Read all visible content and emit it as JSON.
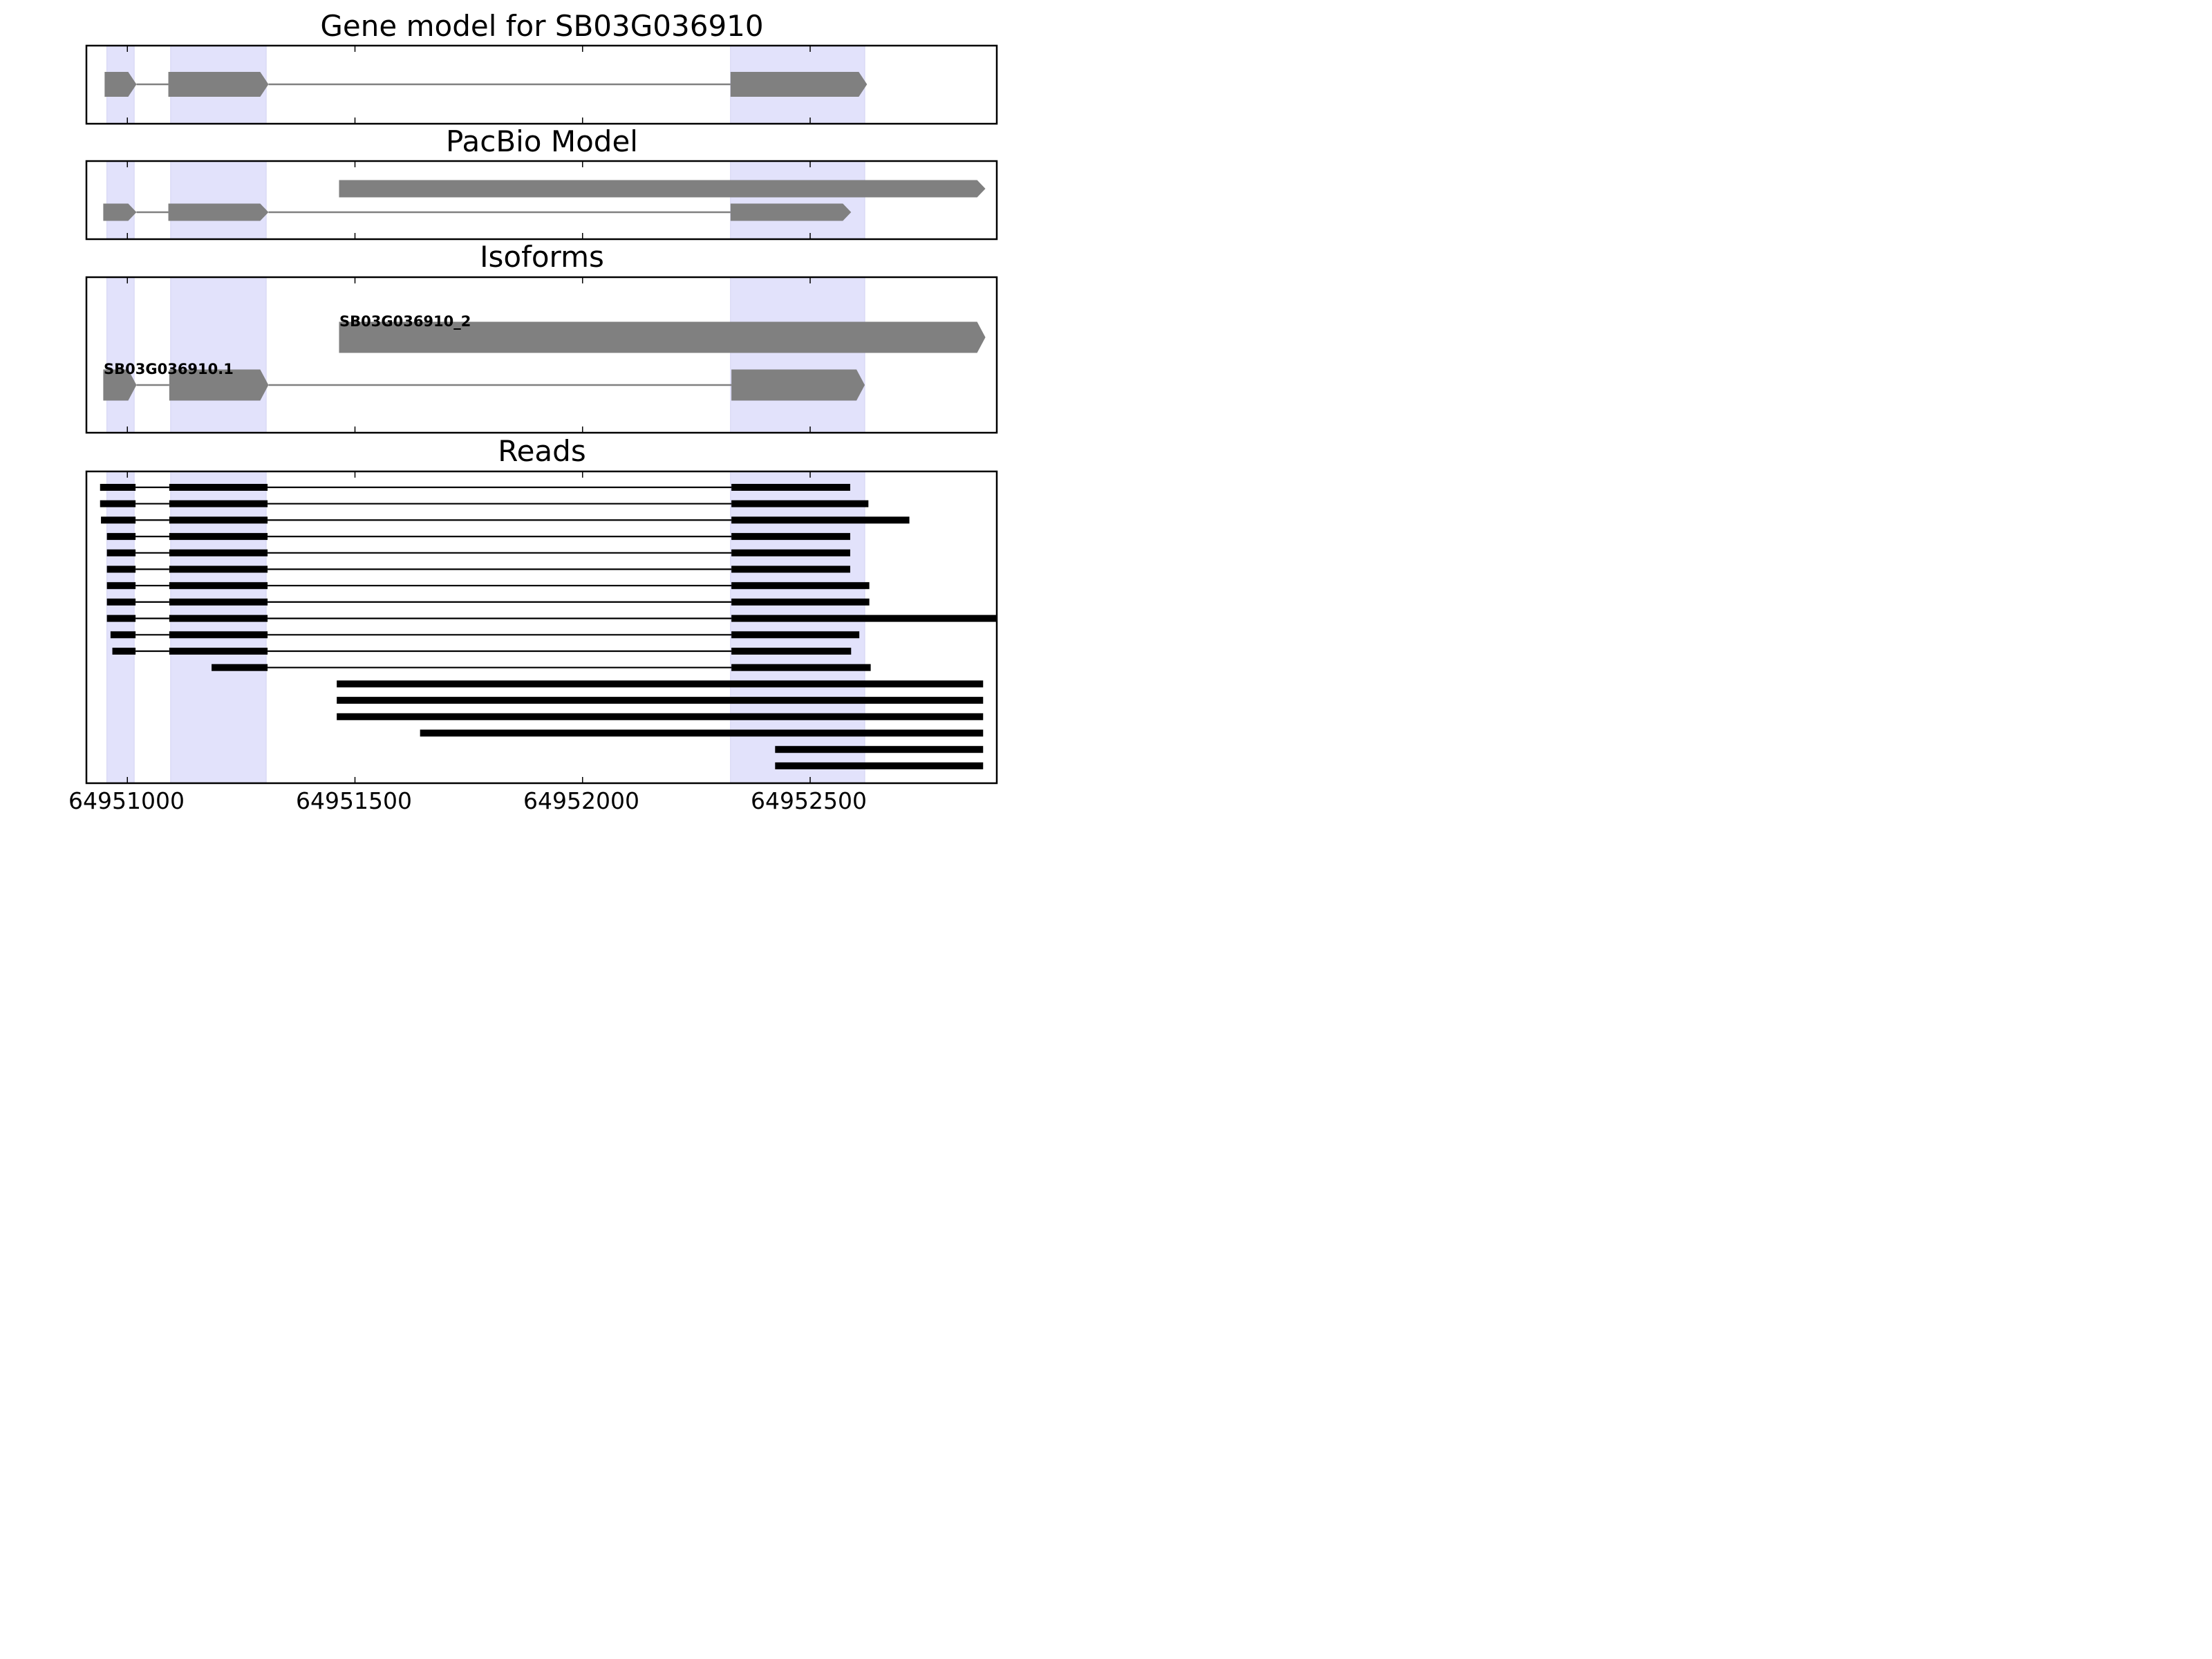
{
  "chart_data": {
    "type": "gene-track",
    "title": "Gene model for SB03G036910",
    "xlim": [
      64950910,
      64952910
    ],
    "x_ticks": [
      64951000,
      64951500,
      64952000,
      64952500
    ],
    "x_tick_labels": [
      "64951000",
      "64951500",
      "64952000",
      "64952500"
    ],
    "colors": {
      "feature": "#808080",
      "read": "#000000",
      "exon_highlight": "#e2e2fb",
      "frame": "#000000"
    },
    "exon_highlights": [
      [
        64950955,
        64951015
      ],
      [
        64951095,
        64951305
      ],
      [
        64952325,
        64952620
      ]
    ],
    "panels": [
      {
        "title": "Gene model for SB03G036910",
        "kind": "gene",
        "features": [
          {
            "label": "",
            "exons": [
              [
                64950950,
                64951020
              ],
              [
                64951090,
                64951310
              ],
              [
                64952325,
                64952625
              ]
            ]
          }
        ]
      },
      {
        "title": "PacBio Model",
        "kind": "gene",
        "features": [
          {
            "label": "",
            "exons": [
              [
                64951465,
                64952885
              ]
            ]
          },
          {
            "label": "",
            "exons": [
              [
                64950947,
                64951020
              ],
              [
                64951090,
                64951310
              ],
              [
                64952325,
                64952590
              ]
            ]
          }
        ]
      },
      {
        "title": "Isoforms",
        "kind": "gene",
        "features": [
          {
            "label": "SB03G036910_2",
            "exons": [
              [
                64951465,
                64952885
              ]
            ]
          },
          {
            "label": "SB03G036910.1",
            "exons": [
              [
                64950947,
                64951020
              ],
              [
                64951092,
                64951310
              ],
              [
                64952327,
                64952620
              ]
            ]
          }
        ]
      },
      {
        "title": "Reads",
        "kind": "reads",
        "features": [
          {
            "exons": [
              [
                64950940,
                64951018
              ],
              [
                64951092,
                64951308
              ],
              [
                64952327,
                64952588
              ]
            ]
          },
          {
            "exons": [
              [
                64950940,
                64951018
              ],
              [
                64951092,
                64951308
              ],
              [
                64952327,
                64952628
              ]
            ]
          },
          {
            "exons": [
              [
                64950942,
                64951018
              ],
              [
                64951092,
                64951308
              ],
              [
                64952327,
                64952718
              ]
            ]
          },
          {
            "exons": [
              [
                64950955,
                64951018
              ],
              [
                64951092,
                64951308
              ],
              [
                64952327,
                64952588
              ]
            ]
          },
          {
            "exons": [
              [
                64950955,
                64951018
              ],
              [
                64951092,
                64951308
              ],
              [
                64952327,
                64952588
              ]
            ]
          },
          {
            "exons": [
              [
                64950955,
                64951018
              ],
              [
                64951092,
                64951308
              ],
              [
                64952327,
                64952588
              ]
            ]
          },
          {
            "exons": [
              [
                64950955,
                64951018
              ],
              [
                64951092,
                64951308
              ],
              [
                64952327,
                64952630
              ]
            ]
          },
          {
            "exons": [
              [
                64950955,
                64951018
              ],
              [
                64951092,
                64951308
              ],
              [
                64952327,
                64952630
              ]
            ]
          },
          {
            "exons": [
              [
                64950955,
                64951018
              ],
              [
                64951092,
                64951308
              ],
              [
                64952327,
                64952910
              ]
            ]
          },
          {
            "exons": [
              [
                64950963,
                64951018
              ],
              [
                64951092,
                64951308
              ],
              [
                64952327,
                64952608
              ]
            ]
          },
          {
            "exons": [
              [
                64950967,
                64951018
              ],
              [
                64951092,
                64951308
              ],
              [
                64952327,
                64952590
              ]
            ]
          },
          {
            "exons": [
              [
                64951185,
                64951308
              ],
              [
                64952327,
                64952633
              ]
            ]
          },
          {
            "exons": [
              [
                64951460,
                64952880
              ]
            ]
          },
          {
            "exons": [
              [
                64951460,
                64952880
              ]
            ]
          },
          {
            "exons": [
              [
                64951460,
                64952880
              ]
            ]
          },
          {
            "exons": [
              [
                64951643,
                64952880
              ]
            ]
          },
          {
            "exons": [
              [
                64952423,
                64952880
              ]
            ]
          },
          {
            "exons": [
              [
                64952423,
                64952880
              ]
            ]
          }
        ]
      }
    ]
  }
}
